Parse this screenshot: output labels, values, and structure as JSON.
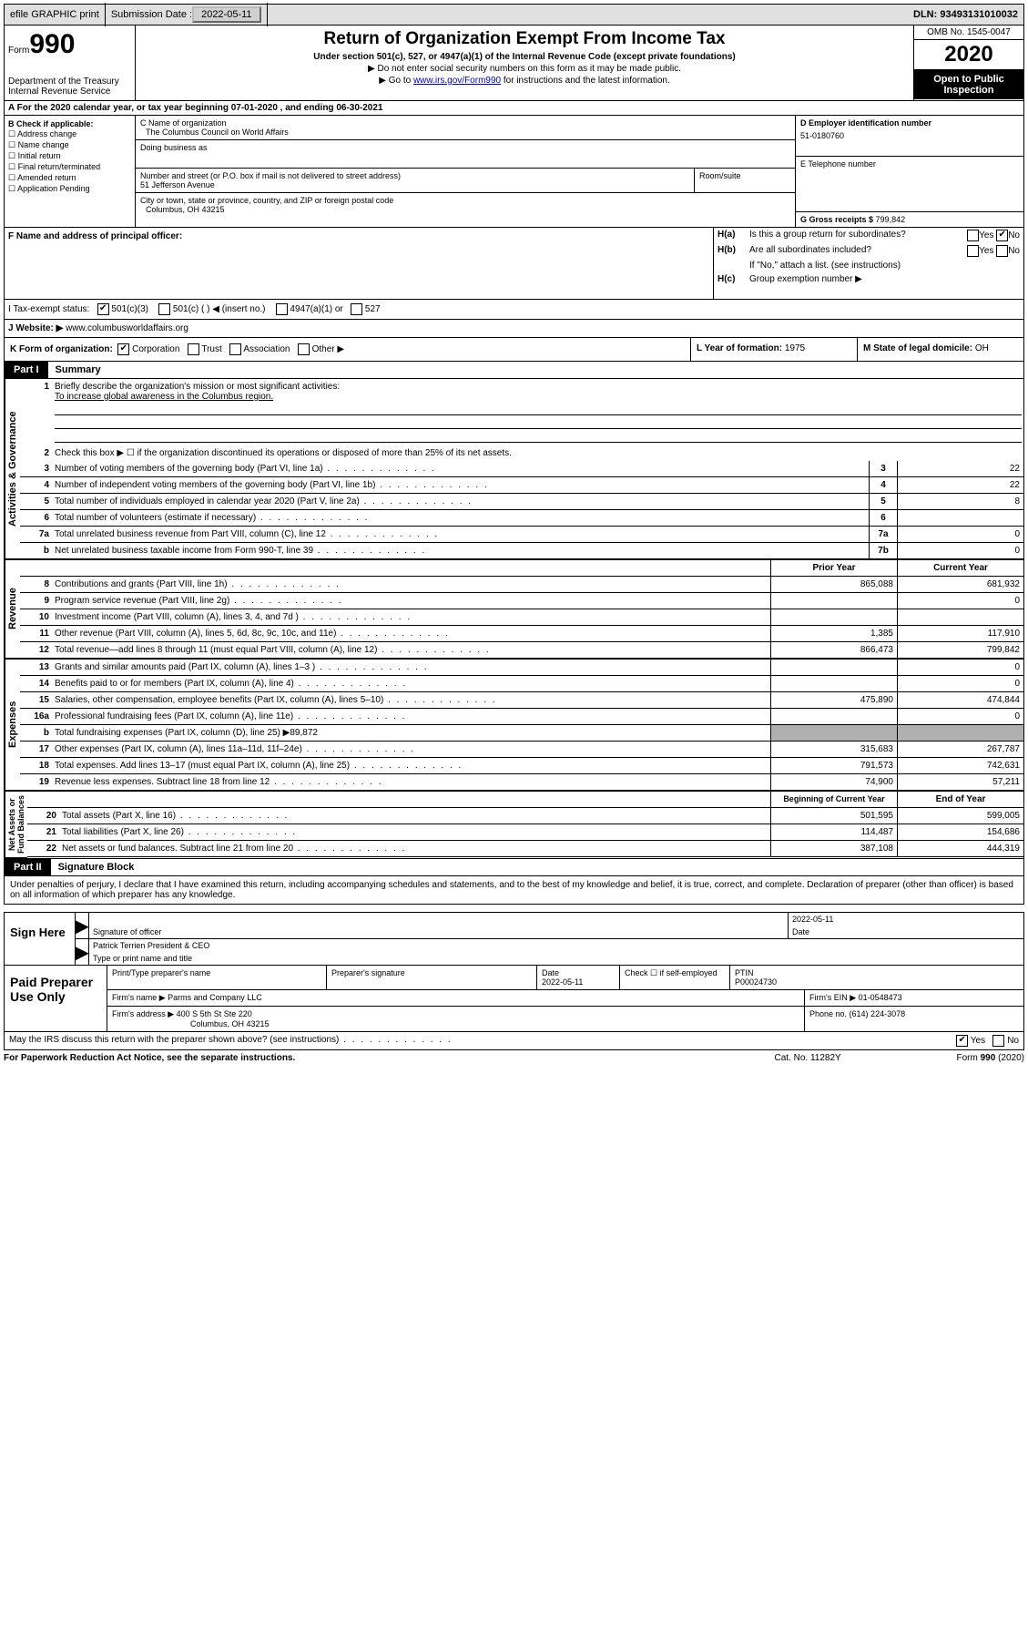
{
  "top": {
    "efile": "efile GRAPHIC print",
    "submission_label": "Submission Date : ",
    "submission_date": "2022-05-11",
    "dln_label": "DLN: ",
    "dln": "93493131010032"
  },
  "header": {
    "form_label": "Form",
    "form_num": "990",
    "dept": "Department of the Treasury\nInternal Revenue Service",
    "title": "Return of Organization Exempt From Income Tax",
    "sub": "Under section 501(c), 527, or 4947(a)(1) of the Internal Revenue Code (except private foundations)",
    "sub2a": "▶ Do not enter social security numbers on this form as it may be made public.",
    "sub2b_pre": "▶ Go to ",
    "sub2b_link": "www.irs.gov/Form990",
    "sub2b_post": " for instructions and the latest information.",
    "omb": "OMB No. 1545-0047",
    "year": "2020",
    "inspect": "Open to Public Inspection"
  },
  "line_a": "A For the 2020 calendar year, or tax year beginning 07-01-2020    , and ending 06-30-2021",
  "b": {
    "label": "B Check if applicable:",
    "items": [
      "Address change",
      "Name change",
      "Initial return",
      "Final return/terminated",
      "Amended return",
      "Application Pending"
    ]
  },
  "c": {
    "name_lbl": "C Name of organization",
    "name": "The Columbus Council on World Affairs",
    "dba_lbl": "Doing business as",
    "street_lbl": "Number and street (or P.O. box if mail is not delivered to street address)",
    "street": "51 Jefferson Avenue",
    "room_lbl": "Room/suite",
    "city_lbl": "City or town, state or province, country, and ZIP or foreign postal code",
    "city": "Columbus, OH  43215"
  },
  "d": {
    "ein_lbl": "D Employer identification number",
    "ein": "51-0180760",
    "tel_lbl": "E Telephone number",
    "gross_lbl": "G Gross receipts $ ",
    "gross": "799,842"
  },
  "f": {
    "lbl": "F  Name and address of principal officer:"
  },
  "h": {
    "a_lbl": "H(a)",
    "a_txt": "Is this a group return for subordinates?",
    "b_lbl": "H(b)",
    "b_txt": "Are all subordinates included?",
    "b_note": "If \"No,\" attach a list. (see instructions)",
    "c_lbl": "H(c)",
    "c_txt": "Group exemption number ▶",
    "yes": "Yes",
    "no": "No"
  },
  "i": {
    "lbl": "I    Tax-exempt status:",
    "opts": [
      "501(c)(3)",
      "501(c) (  ) ◀ (insert no.)",
      "4947(a)(1) or",
      "527"
    ]
  },
  "j": {
    "lbl": "J   Website: ▶  ",
    "val": "www.columbusworldaffairs.org"
  },
  "k": {
    "lbl": "K Form of organization:",
    "opts": [
      "Corporation",
      "Trust",
      "Association",
      "Other ▶"
    ],
    "l_lbl": "L Year of formation: ",
    "l_val": "1975",
    "m_lbl": "M State of legal domicile: ",
    "m_val": "OH"
  },
  "part1": {
    "label": "Part I",
    "title": "Summary"
  },
  "summary": {
    "q1_lbl": "Briefly describe the organization's mission or most significant activities:",
    "q1_val": "To increase global awareness in the Columbus region.",
    "q2": "Check this box ▶ ☐  if the organization discontinued its operations or disposed of more than 25% of its net assets.",
    "rows_top": [
      {
        "n": "3",
        "t": "Number of voting members of the governing body (Part VI, line 1a)",
        "box": "3",
        "v": "22"
      },
      {
        "n": "4",
        "t": "Number of independent voting members of the governing body (Part VI, line 1b)",
        "box": "4",
        "v": "22"
      },
      {
        "n": "5",
        "t": "Total number of individuals employed in calendar year 2020 (Part V, line 2a)",
        "box": "5",
        "v": "8"
      },
      {
        "n": "6",
        "t": "Total number of volunteers (estimate if necessary)",
        "box": "6",
        "v": ""
      },
      {
        "n": "7a",
        "t": "Total unrelated business revenue from Part VIII, column (C), line 12",
        "box": "7a",
        "v": "0"
      },
      {
        "n": "b",
        "t": "Net unrelated business taxable income from Form 990-T, line 39",
        "box": "7b",
        "v": "0"
      }
    ],
    "header_prior": "Prior Year",
    "header_curr": "Current Year",
    "revenue": [
      {
        "n": "8",
        "t": "Contributions and grants (Part VIII, line 1h)",
        "p": "865,088",
        "c": "681,932"
      },
      {
        "n": "9",
        "t": "Program service revenue (Part VIII, line 2g)",
        "p": "",
        "c": "0"
      },
      {
        "n": "10",
        "t": "Investment income (Part VIII, column (A), lines 3, 4, and 7d )",
        "p": "",
        "c": ""
      },
      {
        "n": "11",
        "t": "Other revenue (Part VIII, column (A), lines 5, 6d, 8c, 9c, 10c, and 11e)",
        "p": "1,385",
        "c": "117,910"
      },
      {
        "n": "12",
        "t": "Total revenue—add lines 8 through 11 (must equal Part VIII, column (A), line 12)",
        "p": "866,473",
        "c": "799,842"
      }
    ],
    "expenses": [
      {
        "n": "13",
        "t": "Grants and similar amounts paid (Part IX, column (A), lines 1–3 )",
        "p": "",
        "c": "0"
      },
      {
        "n": "14",
        "t": "Benefits paid to or for members (Part IX, column (A), line 4)",
        "p": "",
        "c": "0"
      },
      {
        "n": "15",
        "t": "Salaries, other compensation, employee benefits (Part IX, column (A), lines 5–10)",
        "p": "475,890",
        "c": "474,844"
      },
      {
        "n": "16a",
        "t": "Professional fundraising fees (Part IX, column (A), line 11e)",
        "p": "",
        "c": "0"
      },
      {
        "n": "b",
        "t": "Total fundraising expenses (Part IX, column (D), line 25) ▶89,872",
        "p": "SHADE",
        "c": "SHADE"
      },
      {
        "n": "17",
        "t": "Other expenses (Part IX, column (A), lines 11a–11d, 11f–24e)",
        "p": "315,683",
        "c": "267,787"
      },
      {
        "n": "18",
        "t": "Total expenses. Add lines 13–17 (must equal Part IX, column (A), line 25)",
        "p": "791,573",
        "c": "742,631"
      },
      {
        "n": "19",
        "t": "Revenue less expenses. Subtract line 18 from line 12",
        "p": "74,900",
        "c": "57,211"
      }
    ],
    "header_begin": "Beginning of Current Year",
    "header_end": "End of Year",
    "netassets": [
      {
        "n": "20",
        "t": "Total assets (Part X, line 16)",
        "p": "501,595",
        "c": "599,005"
      },
      {
        "n": "21",
        "t": "Total liabilities (Part X, line 26)",
        "p": "114,487",
        "c": "154,686"
      },
      {
        "n": "22",
        "t": "Net assets or fund balances. Subtract line 21 from line 20",
        "p": "387,108",
        "c": "444,319"
      }
    ]
  },
  "part2": {
    "label": "Part II",
    "title": "Signature Block"
  },
  "sig": {
    "declaration": "Under penalties of perjury, I declare that I have examined this return, including accompanying schedules and statements, and to the best of my knowledge and belief, it is true, correct, and complete. Declaration of preparer (other than officer) is based on all information of which preparer has any knowledge.",
    "sign_here": "Sign Here",
    "sig_officer_lbl": "Signature of officer",
    "date_lbl": "Date",
    "date_val": "2022-05-11",
    "name_title": "Patrick Terrien  President & CEO",
    "name_title_lbl": "Type or print name and title"
  },
  "prep": {
    "label": "Paid Preparer Use Only",
    "print_name_lbl": "Print/Type preparer's name",
    "sig_lbl": "Preparer's signature",
    "date_lbl": "Date",
    "date_val": "2022-05-11",
    "check_lbl": "Check ☐ if self-employed",
    "ptin_lbl": "PTIN",
    "ptin_val": "P00024730",
    "firm_name_lbl": "Firm's name     ▶ ",
    "firm_name": "Parms and Company LLC",
    "firm_ein_lbl": "Firm's EIN ▶ ",
    "firm_ein": "01-0548473",
    "firm_addr_lbl": "Firm's address ▶ ",
    "firm_addr1": "400 S 5th St Ste 220",
    "firm_addr2": "Columbus, OH  43215",
    "phone_lbl": "Phone no. ",
    "phone": "(614) 224-3078"
  },
  "discuss": {
    "txt": "May the IRS discuss this return with the preparer shown above? (see instructions)",
    "yes": "Yes",
    "no": "No"
  },
  "footer": {
    "left": "For Paperwork Reduction Act Notice, see the separate instructions.",
    "mid": "Cat. No. 11282Y",
    "right": "Form 990 (2020)"
  }
}
